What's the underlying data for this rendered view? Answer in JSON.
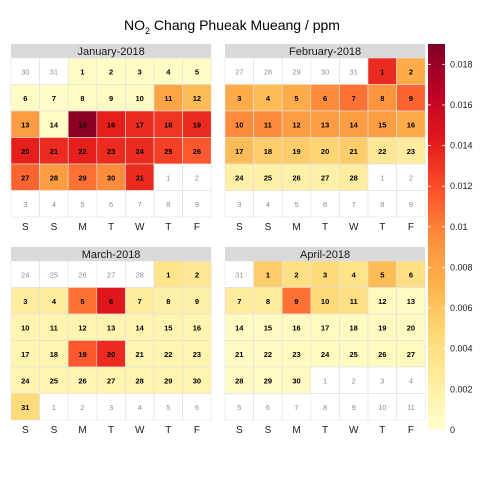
{
  "chart_data": {
    "type": "heatmap",
    "title": {
      "pre": "NO",
      "sub": "2",
      "post": " Chang Phueak Mueang / ppm"
    },
    "weekday_labels": [
      "S",
      "S",
      "M",
      "T",
      "W",
      "T",
      "F"
    ],
    "legend": {
      "range": [
        0,
        0.019
      ],
      "ticks": [
        0,
        0.002,
        0.004,
        0.006,
        0.008,
        0.01,
        0.012,
        0.014,
        0.016,
        0.018
      ],
      "tick_labels": [
        "0",
        "0.002",
        "0.004",
        "0.006",
        "0.008",
        "0.01",
        "0.012",
        "0.014",
        "0.016",
        "0.018"
      ],
      "colors": [
        "#ffffcc",
        "#ffeda0",
        "#fed976",
        "#feb24c",
        "#fd8d3c",
        "#fc4e2a",
        "#e31a1c",
        "#bd0026",
        "#800026"
      ]
    },
    "panels": [
      {
        "title": "January-2018",
        "weeks": [
          [
            {
              "d": "30",
              "m": 0,
              "v": null
            },
            {
              "d": "31",
              "m": 0,
              "v": null
            },
            {
              "d": "1",
              "m": 1,
              "v": 0.0003
            },
            {
              "d": "2",
              "m": 1,
              "v": 0.0002
            },
            {
              "d": "3",
              "m": 1,
              "v": 0.0003
            },
            {
              "d": "4",
              "m": 1,
              "v": 0.0004
            },
            {
              "d": "5",
              "m": 1,
              "v": 0.0003
            }
          ],
          [
            {
              "d": "6",
              "m": 1,
              "v": 0.0003
            },
            {
              "d": "7",
              "m": 1,
              "v": 0.0002
            },
            {
              "d": "8",
              "m": 1,
              "v": 0.0004
            },
            {
              "d": "9",
              "m": 1,
              "v": 0.0005
            },
            {
              "d": "10",
              "m": 1,
              "v": 0.0006
            },
            {
              "d": "11",
              "m": 1,
              "v": 0.008
            },
            {
              "d": "12",
              "m": 1,
              "v": 0.0065
            }
          ],
          [
            {
              "d": "13",
              "m": 1,
              "v": 0.0085
            },
            {
              "d": "14",
              "m": 1,
              "v": 0.0004
            },
            {
              "d": "15",
              "m": 1,
              "v": 0.0185
            },
            {
              "d": "16",
              "m": 1,
              "v": 0.014
            },
            {
              "d": "17",
              "m": 1,
              "v": 0.0135
            },
            {
              "d": "18",
              "m": 1,
              "v": 0.013
            },
            {
              "d": "19",
              "m": 1,
              "v": 0.0135
            }
          ],
          [
            {
              "d": "20",
              "m": 1,
              "v": 0.014
            },
            {
              "d": "21",
              "m": 1,
              "v": 0.0135
            },
            {
              "d": "22",
              "m": 1,
              "v": 0.014
            },
            {
              "d": "23",
              "m": 1,
              "v": 0.0135
            },
            {
              "d": "24",
              "m": 1,
              "v": 0.0135
            },
            {
              "d": "25",
              "m": 1,
              "v": 0.0125
            },
            {
              "d": "26",
              "m": 1,
              "v": 0.0115
            }
          ],
          [
            {
              "d": "27",
              "m": 1,
              "v": 0.011
            },
            {
              "d": "28",
              "m": 1,
              "v": 0.0085
            },
            {
              "d": "29",
              "m": 1,
              "v": 0.0105
            },
            {
              "d": "30",
              "m": 1,
              "v": 0.0095
            },
            {
              "d": "31",
              "m": 1,
              "v": 0.0135
            },
            {
              "d": "1",
              "m": 0,
              "v": null
            },
            {
              "d": "2",
              "m": 0,
              "v": null
            }
          ],
          [
            {
              "d": "3",
              "m": 0,
              "v": null
            },
            {
              "d": "4",
              "m": 0,
              "v": null
            },
            {
              "d": "5",
              "m": 0,
              "v": null
            },
            {
              "d": "6",
              "m": 0,
              "v": null
            },
            {
              "d": "7",
              "m": 0,
              "v": null
            },
            {
              "d": "8",
              "m": 0,
              "v": null
            },
            {
              "d": "9",
              "m": 0,
              "v": null
            }
          ]
        ]
      },
      {
        "title": "February-2018",
        "weeks": [
          [
            {
              "d": "27",
              "m": 0,
              "v": null
            },
            {
              "d": "28",
              "m": 0,
              "v": null
            },
            {
              "d": "29",
              "m": 0,
              "v": null
            },
            {
              "d": "30",
              "m": 0,
              "v": null
            },
            {
              "d": "31",
              "m": 0,
              "v": null
            },
            {
              "d": "1",
              "m": 1,
              "v": 0.0135
            },
            {
              "d": "2",
              "m": 1,
              "v": 0.0075
            }
          ],
          [
            {
              "d": "3",
              "m": 1,
              "v": 0.0075
            },
            {
              "d": "4",
              "m": 1,
              "v": 0.0065
            },
            {
              "d": "5",
              "m": 1,
              "v": 0.0075
            },
            {
              "d": "6",
              "m": 1,
              "v": 0.0095
            },
            {
              "d": "7",
              "m": 1,
              "v": 0.0105
            },
            {
              "d": "8",
              "m": 1,
              "v": 0.009
            },
            {
              "d": "9",
              "m": 1,
              "v": 0.011
            }
          ],
          [
            {
              "d": "10",
              "m": 1,
              "v": 0.0095
            },
            {
              "d": "11",
              "m": 1,
              "v": 0.0095
            },
            {
              "d": "12",
              "m": 1,
              "v": 0.0085
            },
            {
              "d": "13",
              "m": 1,
              "v": 0.0085
            },
            {
              "d": "14",
              "m": 1,
              "v": 0.0085
            },
            {
              "d": "15",
              "m": 1,
              "v": 0.0085
            },
            {
              "d": "16",
              "m": 1,
              "v": 0.0075
            }
          ],
          [
            {
              "d": "17",
              "m": 1,
              "v": 0.0065
            },
            {
              "d": "18",
              "m": 1,
              "v": 0.0055
            },
            {
              "d": "19",
              "m": 1,
              "v": 0.0055
            },
            {
              "d": "20",
              "m": 1,
              "v": 0.005
            },
            {
              "d": "21",
              "m": 1,
              "v": 0.0055
            },
            {
              "d": "22",
              "m": 1,
              "v": 0.003
            },
            {
              "d": "23",
              "m": 1,
              "v": 0.0025
            }
          ],
          [
            {
              "d": "24",
              "m": 1,
              "v": 0.002
            },
            {
              "d": "25",
              "m": 1,
              "v": 0.002
            },
            {
              "d": "26",
              "m": 1,
              "v": 0.002
            },
            {
              "d": "27",
              "m": 1,
              "v": 0.002
            },
            {
              "d": "28",
              "m": 1,
              "v": 0.0025
            },
            {
              "d": "1",
              "m": 0,
              "v": null
            },
            {
              "d": "2",
              "m": 0,
              "v": null
            }
          ],
          [
            {
              "d": "3",
              "m": 0,
              "v": null
            },
            {
              "d": "4",
              "m": 0,
              "v": null
            },
            {
              "d": "5",
              "m": 0,
              "v": null
            },
            {
              "d": "6",
              "m": 0,
              "v": null
            },
            {
              "d": "7",
              "m": 0,
              "v": null
            },
            {
              "d": "8",
              "m": 0,
              "v": null
            },
            {
              "d": "9",
              "m": 0,
              "v": null
            }
          ]
        ]
      },
      {
        "title": "March-2018",
        "weeks": [
          [
            {
              "d": "24",
              "m": 0,
              "v": null
            },
            {
              "d": "25",
              "m": 0,
              "v": null
            },
            {
              "d": "26",
              "m": 0,
              "v": null
            },
            {
              "d": "27",
              "m": 0,
              "v": null
            },
            {
              "d": "28",
              "m": 0,
              "v": null
            },
            {
              "d": "1",
              "m": 1,
              "v": 0.0035
            },
            {
              "d": "2",
              "m": 1,
              "v": 0.003
            }
          ],
          [
            {
              "d": "3",
              "m": 1,
              "v": 0.0025
            },
            {
              "d": "4",
              "m": 1,
              "v": 0.0025
            },
            {
              "d": "5",
              "m": 1,
              "v": 0.0105
            },
            {
              "d": "6",
              "m": 1,
              "v": 0.0145
            },
            {
              "d": "7",
              "m": 1,
              "v": 0.0025
            },
            {
              "d": "8",
              "m": 1,
              "v": 0.002
            },
            {
              "d": "9",
              "m": 1,
              "v": 0.002
            }
          ],
          [
            {
              "d": "10",
              "m": 1,
              "v": 0.0015
            },
            {
              "d": "11",
              "m": 1,
              "v": 0.0015
            },
            {
              "d": "12",
              "m": 1,
              "v": 0.0015
            },
            {
              "d": "13",
              "m": 1,
              "v": 0.0015
            },
            {
              "d": "14",
              "m": 1,
              "v": 0.0015
            },
            {
              "d": "15",
              "m": 1,
              "v": 0.0015
            },
            {
              "d": "16",
              "m": 1,
              "v": 0.0015
            }
          ],
          [
            {
              "d": "17",
              "m": 1,
              "v": 0.0015
            },
            {
              "d": "18",
              "m": 1,
              "v": 0.0015
            },
            {
              "d": "19",
              "m": 1,
              "v": 0.0115
            },
            {
              "d": "20",
              "m": 1,
              "v": 0.0135
            },
            {
              "d": "21",
              "m": 1,
              "v": 0.0015
            },
            {
              "d": "22",
              "m": 1,
              "v": 0.0015
            },
            {
              "d": "23",
              "m": 1,
              "v": 0.0015
            }
          ],
          [
            {
              "d": "24",
              "m": 1,
              "v": 0.0015
            },
            {
              "d": "25",
              "m": 1,
              "v": 0.0015
            },
            {
              "d": "26",
              "m": 1,
              "v": 0.0015
            },
            {
              "d": "27",
              "m": 1,
              "v": 0.0015
            },
            {
              "d": "28",
              "m": 1,
              "v": 0.0015
            },
            {
              "d": "29",
              "m": 1,
              "v": 0.0015
            },
            {
              "d": "30",
              "m": 1,
              "v": 0.0015
            }
          ],
          [
            {
              "d": "31",
              "m": 1,
              "v": 0.0045
            },
            {
              "d": "1",
              "m": 0,
              "v": null
            },
            {
              "d": "2",
              "m": 0,
              "v": null
            },
            {
              "d": "3",
              "m": 0,
              "v": null
            },
            {
              "d": "4",
              "m": 0,
              "v": null
            },
            {
              "d": "5",
              "m": 0,
              "v": null
            },
            {
              "d": "6",
              "m": 0,
              "v": null
            }
          ]
        ]
      },
      {
        "title": "April-2018",
        "weeks": [
          [
            {
              "d": "31",
              "m": 0,
              "v": null
            },
            {
              "d": "1",
              "m": 1,
              "v": 0.0055
            },
            {
              "d": "2",
              "m": 1,
              "v": 0.004
            },
            {
              "d": "3",
              "m": 1,
              "v": 0.0045
            },
            {
              "d": "4",
              "m": 1,
              "v": 0.0035
            },
            {
              "d": "5",
              "m": 1,
              "v": 0.0065
            },
            {
              "d": "6",
              "m": 1,
              "v": 0.004
            }
          ],
          [
            {
              "d": "7",
              "m": 1,
              "v": 0.0025
            },
            {
              "d": "8",
              "m": 1,
              "v": 0.0025
            },
            {
              "d": "9",
              "m": 1,
              "v": 0.0105
            },
            {
              "d": "10",
              "m": 1,
              "v": 0.0045
            },
            {
              "d": "11",
              "m": 1,
              "v": 0.004
            },
            {
              "d": "12",
              "m": 1,
              "v": 0.0008
            },
            {
              "d": "13",
              "m": 1,
              "v": 0.0005
            }
          ],
          [
            {
              "d": "14",
              "m": 1,
              "v": 0.0005
            },
            {
              "d": "15",
              "m": 1,
              "v": 0.0006
            },
            {
              "d": "16",
              "m": 1,
              "v": 0.0006
            },
            {
              "d": "17",
              "m": 1,
              "v": 0.0007
            },
            {
              "d": "18",
              "m": 1,
              "v": 0.0006
            },
            {
              "d": "19",
              "m": 1,
              "v": 0.0006
            },
            {
              "d": "20",
              "m": 1,
              "v": 0.0006
            }
          ],
          [
            {
              "d": "21",
              "m": 1,
              "v": 0.0006
            },
            {
              "d": "22",
              "m": 1,
              "v": 0.0006
            },
            {
              "d": "23",
              "m": 1,
              "v": 0.0007
            },
            {
              "d": "24",
              "m": 1,
              "v": 0.0007
            },
            {
              "d": "25",
              "m": 1,
              "v": 0.0006
            },
            {
              "d": "26",
              "m": 1,
              "v": 0.0007
            },
            {
              "d": "27",
              "m": 1,
              "v": 0.0008
            }
          ],
          [
            {
              "d": "28",
              "m": 1,
              "v": 0.0006
            },
            {
              "d": "29",
              "m": 1,
              "v": 0.0005
            },
            {
              "d": "30",
              "m": 1,
              "v": 0.0006
            },
            {
              "d": "1",
              "m": 0,
              "v": null
            },
            {
              "d": "2",
              "m": 0,
              "v": null
            },
            {
              "d": "3",
              "m": 0,
              "v": null
            },
            {
              "d": "4",
              "m": 0,
              "v": null
            }
          ],
          [
            {
              "d": "5",
              "m": 0,
              "v": null
            },
            {
              "d": "6",
              "m": 0,
              "v": null
            },
            {
              "d": "7",
              "m": 0,
              "v": null
            },
            {
              "d": "8",
              "m": 0,
              "v": null
            },
            {
              "d": "9",
              "m": 0,
              "v": null
            },
            {
              "d": "10",
              "m": 0,
              "v": null
            },
            {
              "d": "11",
              "m": 0,
              "v": null
            }
          ]
        ]
      }
    ]
  }
}
